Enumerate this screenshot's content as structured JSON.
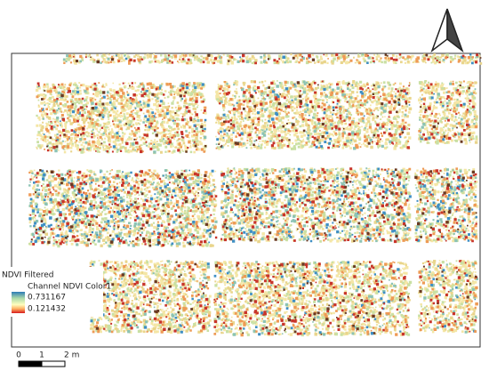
{
  "legend": {
    "title": "NDVI Filtered",
    "layer": "Channel NDVI Color1",
    "max": "0.731167",
    "min": "0.121432"
  },
  "scale_bar": {
    "labels": [
      "0",
      "1",
      "2 m"
    ]
  }
}
